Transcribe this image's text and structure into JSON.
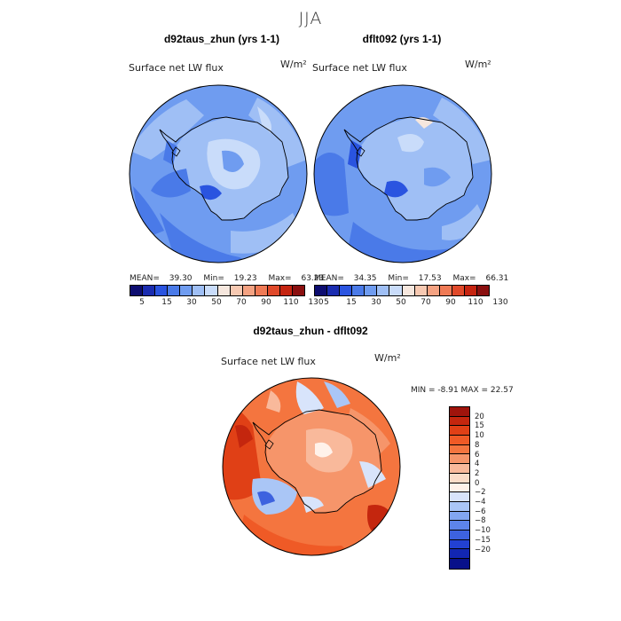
{
  "figure": {
    "title": "JJA"
  },
  "panels": {
    "left": {
      "title": "d92taus_zhun (yrs 1-1)",
      "variable": "Surface net LW flux",
      "units": "W/m²",
      "stats": {
        "mean_label": "MEAN=",
        "mean": "39.30",
        "min_label": "Min=",
        "min": "19.23",
        "max_label": "Max=",
        "max": "63.23"
      }
    },
    "right": {
      "title": "dflt092 (yrs 1-1)",
      "variable": "Surface net LW flux",
      "units": "W/m²",
      "stats": {
        "mean_label": "MEAN=",
        "mean": "34.35",
        "min_label": "Min=",
        "min": "17.53",
        "max_label": "Max=",
        "max": "66.31"
      }
    },
    "diff": {
      "title": "d92taus_zhun - dflt092",
      "variable": "Surface net LW flux",
      "units": "W/m²",
      "stats_text": "MIN =   -8.91 MAX =  22.57"
    }
  },
  "colorbar_top": {
    "labels": [
      "5",
      "15",
      "30",
      "50",
      "70",
      "90",
      "110",
      "130"
    ],
    "colors": [
      "#0d0d70",
      "#1a2cb0",
      "#2a54e0",
      "#4a7ae8",
      "#6f9cf0",
      "#9fbff5",
      "#c9dcfa",
      "#f6e7de",
      "#f7c9b2",
      "#f4a282",
      "#ef7a55",
      "#e0492a",
      "#c52410",
      "#8a0f0f"
    ]
  },
  "colorbar_diff": {
    "labels": [
      "20",
      "15",
      "10",
      "8",
      "6",
      "4",
      "2",
      "0",
      "−2",
      "−4",
      "−6",
      "−8",
      "−10",
      "−15",
      "−20"
    ],
    "colors": [
      "#a0140c",
      "#c4260e",
      "#e04016",
      "#ef5a26",
      "#f4753f",
      "#f6956a",
      "#f9b99b",
      "#fbdcc8",
      "#fff2ea",
      "#d8e4fb",
      "#aac6f6",
      "#82a6f0",
      "#5d84ea",
      "#3d62df",
      "#2241d2",
      "#1226b2",
      "#08108a"
    ]
  }
}
